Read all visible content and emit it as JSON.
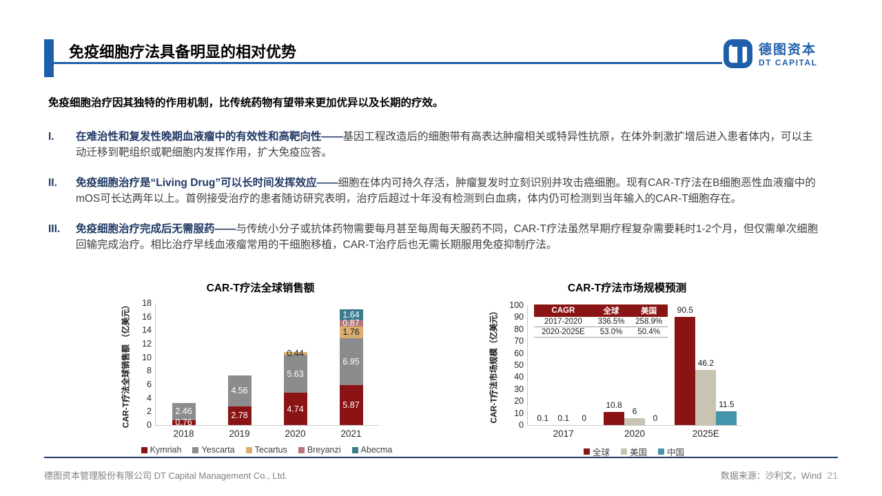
{
  "header": {
    "title": "免疫细胞疗法具备明显的相对优势",
    "logo": {
      "cn": "德图资本",
      "en": "DT CAPITAL"
    },
    "accent_color": "#1E5FA9"
  },
  "intro": "免疫细胞治疗因其独特的作用机制，比传统药物有望带来更加优异以及长期的疗效。",
  "points": [
    {
      "num": "I.",
      "lead": "在难治性和复发性晚期血液瘤中的有效性和高靶向性——",
      "body": "基因工程改造后的细胞带有高表达肿瘤相关或特异性抗原，在体外刺激扩增后进入患者体内，可以主动迁移到靶组织或靶细胞内发挥作用，扩大免疫应答。"
    },
    {
      "num": "II.",
      "lead": "免疫细胞治疗是“Living Drug”可以长时间发挥效应——",
      "body": "细胞在体内可持久存活，肿瘤复发时立刻识别并攻击癌细胞。现有CAR-T疗法在B细胞恶性血液瘤中的mOS可长达两年以上。首例接受治疗的患者随访研究表明，治疗后超过十年没有检测到白血病，体内仍可检测到当年输入的CAR-T细胞存在。"
    },
    {
      "num": "III.",
      "lead": "免疫细胞治疗完成后无需服药——",
      "body": "与传统小分子或抗体药物需要每月甚至每周每天服药不同，CAR-T疗法虽然早期疗程复杂需要耗时1-2个月，但仅需单次细胞回输完成治疗。相比治疗早线血液瘤常用的干细胞移植，CAR-T治疗后也无需长期服用免疫抑制疗法。"
    }
  ],
  "chart_data": [
    {
      "type": "bar",
      "stacked": true,
      "title": "CAR-T疗法全球销售额",
      "ylabel": "CAR-T疗法全球销售额 （亿美元）",
      "xlabel": "",
      "categories": [
        "2018",
        "2019",
        "2020",
        "2021"
      ],
      "ylim": [
        0,
        18
      ],
      "ytick_step": 2,
      "grid": false,
      "legend_position": "bottom",
      "series": [
        {
          "name": "Kymriah",
          "color": "#8A1314",
          "label_color": "#FFFFFF",
          "values": [
            0.76,
            2.78,
            4.74,
            5.87
          ],
          "labels": [
            "0.76",
            "2.78",
            "4.74",
            "5.87"
          ]
        },
        {
          "name": "Yescarta",
          "color": "#8C8C8C",
          "label_color": "#FFFFFF",
          "values": [
            2.46,
            4.56,
            5.63,
            6.95
          ],
          "labels": [
            "2.46",
            "4.56",
            "5.63",
            "6.95"
          ]
        },
        {
          "name": "Tecartus",
          "color": "#D9AF6F",
          "label_color": "#1A1A1A",
          "values": [
            0,
            0,
            0.44,
            1.76
          ],
          "labels": [
            "",
            "",
            "0.44",
            "1.76"
          ]
        },
        {
          "name": "Breyanzi",
          "color": "#B4777B",
          "label_color": "#FFFFFF",
          "values": [
            0,
            0,
            0,
            0.87
          ],
          "labels": [
            "",
            "",
            "",
            "0.87"
          ]
        },
        {
          "name": "Abecma",
          "color": "#3C7A8E",
          "label_color": "#FFFFFF",
          "values": [
            0,
            0,
            0,
            1.64
          ],
          "labels": [
            "",
            "",
            "",
            "1.64"
          ]
        }
      ]
    },
    {
      "type": "bar",
      "stacked": false,
      "title": "CAR-T疗法市场规模预测",
      "ylabel": "CAR-T疗法市场规模（亿美元）",
      "xlabel": "",
      "categories": [
        "2017",
        "2020",
        "2025E"
      ],
      "ylim": [
        0,
        100
      ],
      "ytick_step": 10,
      "grid": false,
      "legend_position": "bottom",
      "series": [
        {
          "name": "全球",
          "color": "#8A1314",
          "values": [
            0.1,
            10.8,
            90.5
          ],
          "labels": [
            "0.1",
            "10.8",
            "90.5"
          ]
        },
        {
          "name": "美国",
          "color": "#C8C4B1",
          "values": [
            0.1,
            6,
            46.2
          ],
          "labels": [
            "0.1",
            "6",
            "46.2"
          ]
        },
        {
          "name": "中国",
          "color": "#4494AB",
          "values": [
            0,
            0,
            11.5
          ],
          "labels": [
            "0",
            "0",
            "11.5"
          ]
        }
      ],
      "table": {
        "headers": [
          "CAGR",
          "全球",
          "美国"
        ],
        "rows": [
          [
            "2017-2020",
            "336.5%",
            "258.9%"
          ],
          [
            "2020-2025E",
            "53.0%",
            "50.4%"
          ]
        ]
      }
    }
  ],
  "footer": {
    "company": "德图资本管理股份有限公司  DT Capital Management Co., Ltd.",
    "source": "数据来源：沙利文，Wind",
    "page": "21"
  }
}
